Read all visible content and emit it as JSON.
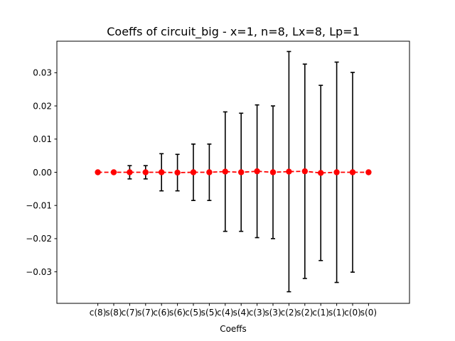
{
  "chart_data": {
    "type": "errorbar",
    "title": "Coeffs of circuit_big - x=1, n=8, Lx=8, Lp=1",
    "xlabel": "Coeffs",
    "ylabel": "",
    "categories": [
      "c(8)",
      "s(8)",
      "c(7)",
      "s(7)",
      "c(6)",
      "s(6)",
      "c(5)",
      "s(5)",
      "c(4)",
      "s(4)",
      "c(3)",
      "s(3)",
      "c(2)",
      "s(2)",
      "c(1)",
      "s(1)",
      "c(0)",
      "s(0)"
    ],
    "series": [
      {
        "values": [
          0.0,
          0.0,
          0.0,
          0.0,
          0.0,
          -0.0001,
          0.0,
          0.0,
          0.0002,
          0.0,
          0.0003,
          0.0,
          0.0002,
          0.0003,
          -0.0002,
          0.0,
          0.0,
          0.0
        ],
        "errors": [
          0.0,
          0.0,
          0.002,
          0.002,
          0.0056,
          0.0055,
          0.0085,
          0.0085,
          0.018,
          0.0178,
          0.02,
          0.02,
          0.0362,
          0.0323,
          0.0264,
          0.0332,
          0.0301,
          0.0
        ]
      }
    ],
    "ylim": [
      -0.0395,
      0.0395
    ],
    "yticks": [
      "−0.03",
      "−0.02",
      "−0.01",
      "0.00",
      "0.01",
      "0.02",
      "0.03"
    ],
    "ytick_values": [
      -0.03,
      -0.02,
      -0.01,
      0.0,
      0.01,
      0.02,
      0.03
    ],
    "grid": false,
    "legend": "none",
    "colors": {
      "line": "#ff0000",
      "errorbar": "#000000",
      "axes": "#000000"
    }
  }
}
